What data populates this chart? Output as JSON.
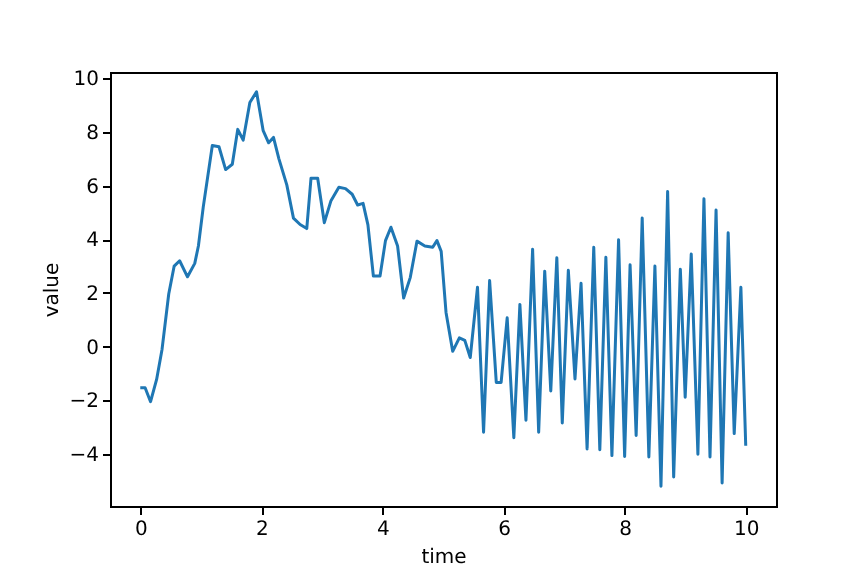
{
  "chart_data": {
    "type": "line",
    "xlabel": "time",
    "ylabel": "value",
    "x": [
      0,
      0.08,
      0.17,
      0.27,
      0.36,
      0.47,
      0.56,
      0.65,
      0.78,
      0.9,
      0.96,
      1.04,
      1.19,
      1.3,
      1.41,
      1.52,
      1.61,
      1.7,
      1.81,
      1.92,
      2.03,
      2.12,
      2.2,
      2.29,
      2.42,
      2.53,
      2.64,
      2.75,
      2.82,
      2.93,
      3.04,
      3.15,
      3.28,
      3.39,
      3.5,
      3.59,
      3.68,
      3.76,
      3.85,
      3.96,
      4.05,
      4.14,
      4.25,
      4.35,
      4.46,
      4.57,
      4.7,
      4.83,
      4.9,
      4.97,
      5.05,
      5.16,
      5.27,
      5.36,
      5.45,
      5.57,
      5.67,
      5.77,
      5.88,
      5.96,
      6.06,
      6.17,
      6.27,
      6.37,
      6.48,
      6.58,
      6.68,
      6.78,
      6.88,
      6.97,
      7.07,
      7.18,
      7.28,
      7.38,
      7.49,
      7.59,
      7.69,
      7.79,
      7.9,
      8.0,
      8.09,
      8.19,
      8.29,
      8.4,
      8.5,
      8.6,
      8.71,
      8.81,
      8.92,
      9.0,
      9.1,
      9.21,
      9.31,
      9.41,
      9.51,
      9.61,
      9.71,
      9.81,
      9.92,
      10
    ],
    "series": [
      {
        "color": "#1f77b4",
        "values": [
          -1.54,
          -1.54,
          -2.06,
          -1.23,
          -0.1,
          1.96,
          3.0,
          3.2,
          2.6,
          3.1,
          3.75,
          5.2,
          7.5,
          7.45,
          6.6,
          6.8,
          8.1,
          7.7,
          9.1,
          9.5,
          8.05,
          7.6,
          7.8,
          7.0,
          6.03,
          4.79,
          4.55,
          4.4,
          6.28,
          6.28,
          4.62,
          5.44,
          5.94,
          5.89,
          5.68,
          5.28,
          5.34,
          4.54,
          2.63,
          2.63,
          3.95,
          4.45,
          3.75,
          1.81,
          2.58,
          3.93,
          3.75,
          3.7,
          3.95,
          3.55,
          1.27,
          -0.18,
          0.32,
          0.23,
          -0.41,
          2.21,
          -3.2,
          2.46,
          -1.34,
          -1.34,
          1.07,
          -3.4,
          1.57,
          -2.75,
          3.63,
          -3.2,
          2.81,
          -1.66,
          3.31,
          -2.85,
          2.84,
          -1.21,
          2.36,
          -3.82,
          3.7,
          -3.85,
          3.33,
          -4.07,
          3.98,
          -4.1,
          3.05,
          -3.32,
          4.79,
          -4.12,
          3.0,
          -5.21,
          5.78,
          -4.87,
          2.88,
          -1.89,
          3.45,
          -4.02,
          5.51,
          -4.12,
          5.09,
          -5.09,
          4.24,
          -3.25,
          2.21,
          -3.7
        ]
      }
    ],
    "xlim": [
      -0.5,
      10.5
    ],
    "ylim": [
      -5.95,
      10.24
    ],
    "xticks": [
      0,
      2,
      4,
      6,
      8,
      10
    ],
    "yticks": [
      -4,
      -2,
      0,
      2,
      4,
      6,
      8,
      10
    ],
    "grid": false,
    "marker": "none",
    "line_style": "solid"
  }
}
